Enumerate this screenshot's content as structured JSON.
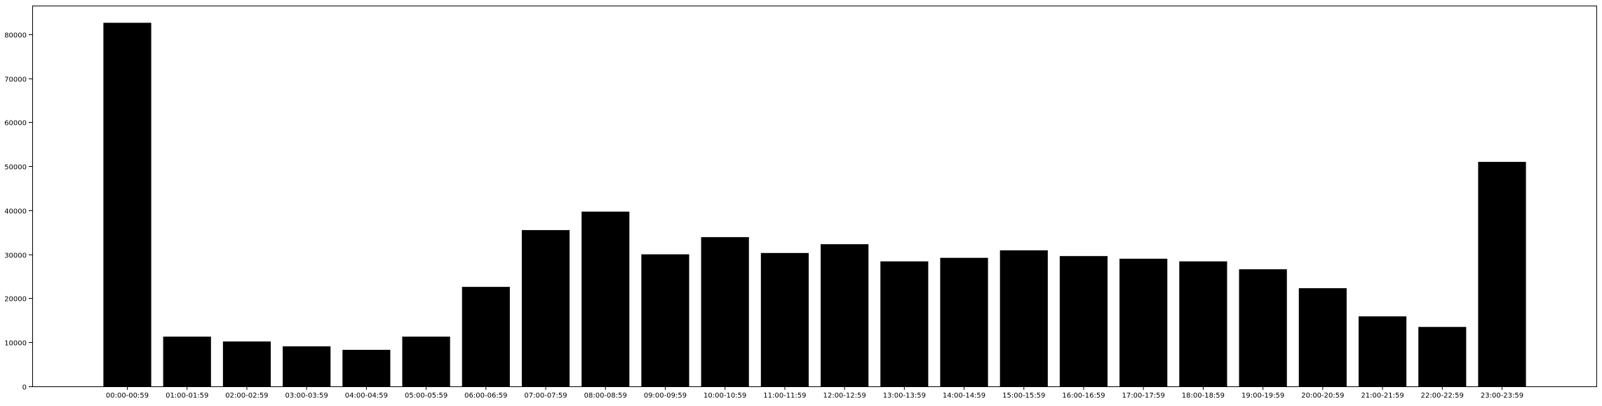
{
  "chart_data": {
    "type": "bar",
    "title": "",
    "xlabel": "",
    "ylabel": "",
    "ylim": [
      0,
      86500
    ],
    "yticks": [
      0,
      10000,
      20000,
      30000,
      40000,
      50000,
      60000,
      70000,
      80000
    ],
    "ytick_labels": [
      "0",
      "10000",
      "20000",
      "30000",
      "40000",
      "50000",
      "60000",
      "70000",
      "80000"
    ],
    "categories": [
      "00:00-00:59",
      "01:00-01:59",
      "02:00-02:59",
      "03:00-03:59",
      "04:00-04:59",
      "05:00-05:59",
      "06:00-06:59",
      "07:00-07:59",
      "08:00-08:59",
      "09:00-09:59",
      "10:00-10:59",
      "11:00-11:59",
      "12:00-12:59",
      "13:00-13:59",
      "14:00-14:59",
      "15:00-15:59",
      "16:00-16:59",
      "17:00-17:59",
      "18:00-18:59",
      "19:00-19:59",
      "20:00-20:59",
      "21:00-21:59",
      "22:00-22:59",
      "23:00-23:59"
    ],
    "values": [
      82600,
      11300,
      10200,
      9100,
      8300,
      11300,
      22600,
      35500,
      39700,
      30000,
      33900,
      30300,
      32300,
      28400,
      29200,
      30900,
      29600,
      29000,
      28400,
      26600,
      22300,
      15900,
      13500,
      51000
    ],
    "bar_color": "#000000",
    "grid": false,
    "legend": "none"
  }
}
